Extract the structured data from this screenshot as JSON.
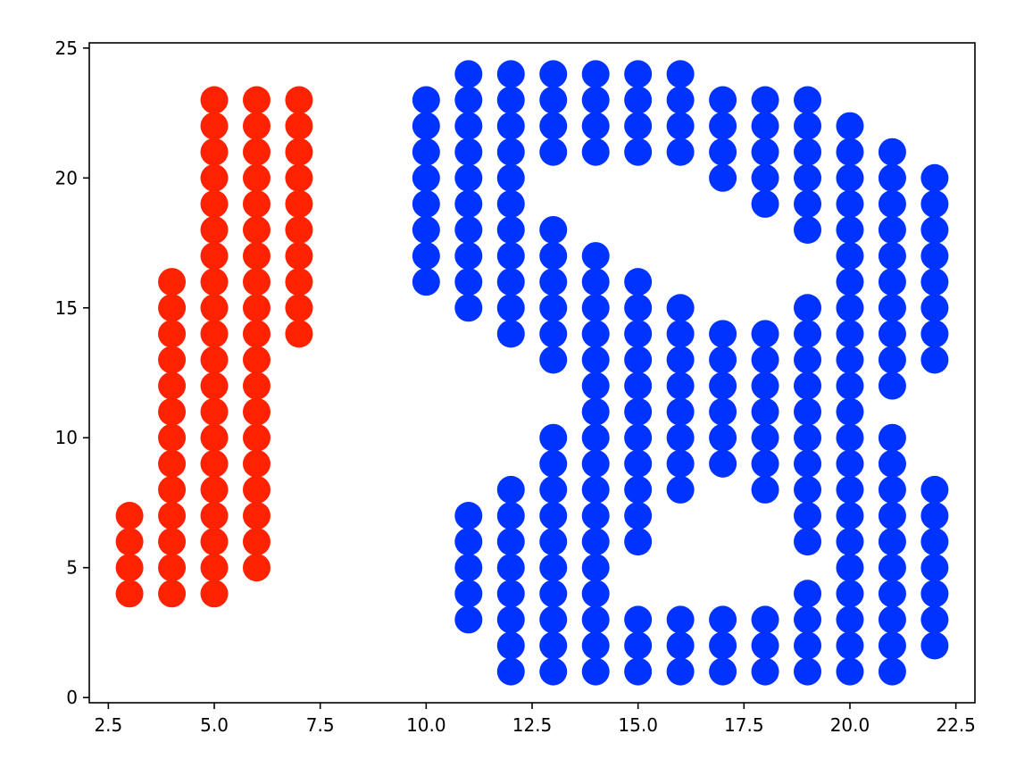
{
  "chart_data": {
    "type": "scatter",
    "title": "",
    "xlabel": "",
    "ylabel": "",
    "xlim": [
      2.05,
      22.95
    ],
    "ylim": [
      -0.2,
      25.2
    ],
    "xticks": [
      2.5,
      5.0,
      7.5,
      10.0,
      12.5,
      15.0,
      17.5,
      20.0,
      22.5
    ],
    "xtick_labels": [
      "2.5",
      "5.0",
      "7.5",
      "10.0",
      "12.5",
      "15.0",
      "17.5",
      "20.0",
      "22.5"
    ],
    "yticks": [
      0,
      5,
      10,
      15,
      20,
      25
    ],
    "ytick_labels": [
      "0",
      "5",
      "10",
      "15",
      "20",
      "25"
    ],
    "grid": false,
    "series": [
      {
        "color": "#ff2200",
        "columns": [
          {
            "x": 3,
            "y_from": 4,
            "y_to": 7
          },
          {
            "x": 4,
            "y_from": 4,
            "y_to": 16
          },
          {
            "x": 5,
            "y_from": 4,
            "y_to": 23
          },
          {
            "x": 6,
            "y_from": 5,
            "y_to": 23
          },
          {
            "x": 7,
            "y_from": 14,
            "y_to": 23
          }
        ]
      },
      {
        "color": "#0033ff",
        "columns": [
          {
            "x": 10,
            "y_from": 16,
            "y_to": 23
          },
          {
            "x": 11,
            "y_from": 3,
            "y_to": 7
          },
          {
            "x": 11,
            "y_from": 15,
            "y_to": 24
          },
          {
            "x": 12,
            "y_from": 1,
            "y_to": 8
          },
          {
            "x": 12,
            "y_from": 14,
            "y_to": 24
          },
          {
            "x": 13,
            "y_from": 1,
            "y_to": 10
          },
          {
            "x": 13,
            "y_from": 13,
            "y_to": 18
          },
          {
            "x": 13,
            "y_from": 21,
            "y_to": 24
          },
          {
            "x": 14,
            "y_from": 1,
            "y_to": 17
          },
          {
            "x": 14,
            "y_from": 21,
            "y_to": 24
          },
          {
            "x": 15,
            "y_from": 1,
            "y_to": 3
          },
          {
            "x": 15,
            "y_from": 6,
            "y_to": 16
          },
          {
            "x": 15,
            "y_from": 21,
            "y_to": 24
          },
          {
            "x": 16,
            "y_from": 1,
            "y_to": 3
          },
          {
            "x": 16,
            "y_from": 8,
            "y_to": 15
          },
          {
            "x": 16,
            "y_from": 21,
            "y_to": 24
          },
          {
            "x": 17,
            "y_from": 1,
            "y_to": 3
          },
          {
            "x": 17,
            "y_from": 9,
            "y_to": 14
          },
          {
            "x": 17,
            "y_from": 20,
            "y_to": 23
          },
          {
            "x": 18,
            "y_from": 1,
            "y_to": 3
          },
          {
            "x": 18,
            "y_from": 8,
            "y_to": 14
          },
          {
            "x": 18,
            "y_from": 19,
            "y_to": 23
          },
          {
            "x": 19,
            "y_from": 1,
            "y_to": 4
          },
          {
            "x": 19,
            "y_from": 6,
            "y_to": 15
          },
          {
            "x": 19,
            "y_from": 18,
            "y_to": 23
          },
          {
            "x": 20,
            "y_from": 1,
            "y_to": 22
          },
          {
            "x": 21,
            "y_from": 1,
            "y_to": 10
          },
          {
            "x": 21,
            "y_from": 12,
            "y_to": 21
          },
          {
            "x": 22,
            "y_from": 2,
            "y_to": 8
          },
          {
            "x": 22,
            "y_from": 13,
            "y_to": 20
          }
        ]
      }
    ]
  }
}
